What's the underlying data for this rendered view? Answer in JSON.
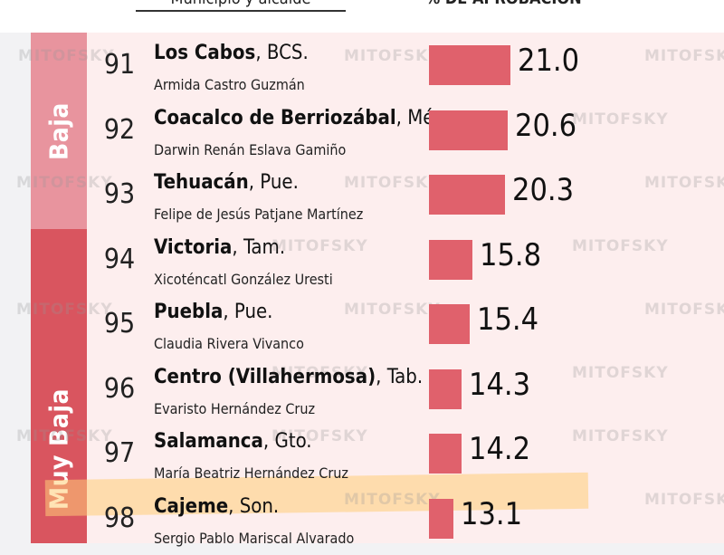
{
  "header": {
    "left_label": "Municipio y alcalde",
    "right_label": "% DE APROBACIÓN"
  },
  "bands": [
    {
      "label": "Baja",
      "color": "#e8949e"
    },
    {
      "label": "Muy Baja",
      "color": "#d9555f"
    }
  ],
  "watermark": "MITOFSKY",
  "chart_data": {
    "type": "bar",
    "orientation": "horizontal",
    "title": "",
    "xlabel": "",
    "ylabel": "",
    "xlim": [
      0,
      30
    ],
    "bar_color": "#e0616c",
    "rows": [
      {
        "rank": "91",
        "municipality": "Los Cabos",
        "state": ", BCS.",
        "mayor": "Armida Castro Guzmán",
        "value": 21.0,
        "value_label": "21.0",
        "band": "Baja"
      },
      {
        "rank": "92",
        "municipality": "Coacalco de Berriozábal",
        "state": ", Méx.",
        "mayor": "Darwin Renán Eslava Gamiño",
        "value": 20.6,
        "value_label": "20.6",
        "band": "Baja"
      },
      {
        "rank": "93",
        "municipality": "Tehuacán",
        "state": ", Pue.",
        "mayor": "Felipe de Jesús Patjane Martínez",
        "value": 20.3,
        "value_label": "20.3",
        "band": "Baja"
      },
      {
        "rank": "94",
        "municipality": "Victoria",
        "state": ", Tam.",
        "mayor": "Xicoténcatl González Uresti",
        "value": 15.8,
        "value_label": "15.8",
        "band": "Muy Baja"
      },
      {
        "rank": "95",
        "municipality": "Puebla",
        "state": ", Pue.",
        "mayor": "Claudia Rivera Vivanco",
        "value": 15.4,
        "value_label": "15.4",
        "band": "Muy Baja"
      },
      {
        "rank": "96",
        "municipality": "Centro (Villahermosa)",
        "state": ", Tab.",
        "mayor": "Evaristo Hernández Cruz",
        "value": 14.3,
        "value_label": "14.3",
        "band": "Muy Baja"
      },
      {
        "rank": "97",
        "municipality": "Salamanca",
        "state": ", Gto.",
        "mayor": "María Beatriz Hernández Cruz",
        "value": 14.2,
        "value_label": "14.2",
        "band": "Muy Baja"
      },
      {
        "rank": "98",
        "municipality": "Cajeme",
        "state": ", Son.",
        "mayor": "Sergio Pablo Mariscal Alvarado",
        "value": 13.1,
        "value_label": "13.1",
        "band": "Muy Baja",
        "highlighted": true
      }
    ]
  }
}
